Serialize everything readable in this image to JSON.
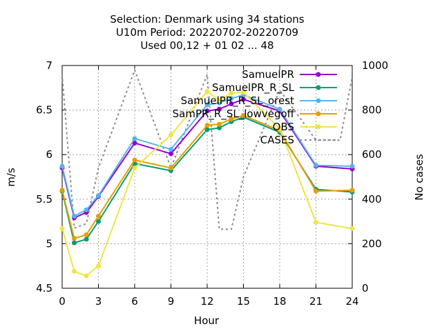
{
  "chart_data": {
    "type": "line",
    "title_lines": [
      "Selection: Denmark using    34 stations",
      "U10m   Period: 20220702-20220709",
      "Used  00,12  + 01 02 ... 48"
    ],
    "xlabel": "Hour",
    "ylabel": "m/s",
    "y2label": "No cases",
    "xlim": [
      0,
      24
    ],
    "ylim": [
      4.5,
      7
    ],
    "y2lim": [
      0,
      1000
    ],
    "x_ticks": [
      0,
      3,
      6,
      9,
      12,
      15,
      18,
      21,
      24
    ],
    "y_ticks": [
      4.5,
      5,
      5.5,
      6,
      6.5,
      7
    ],
    "y_tick_labels": [
      "4.5",
      "5",
      "5.5",
      "6",
      "6.5",
      "7"
    ],
    "y2_ticks": [
      0,
      200,
      400,
      600,
      800,
      1000
    ],
    "grid": true,
    "legend_position": "top-right",
    "x": [
      0,
      1,
      2,
      3,
      6,
      9,
      12,
      13,
      14,
      15,
      18,
      21,
      24
    ],
    "series": [
      {
        "name": "SamuelPR",
        "color": "#9400d3",
        "marker": "circle",
        "values": [
          5.85,
          5.29,
          5.35,
          5.53,
          6.13,
          6.01,
          6.49,
          6.51,
          6.57,
          6.62,
          6.49,
          5.87,
          5.84
        ]
      },
      {
        "name": "SamuelPR_R_SL",
        "color": "#009e73",
        "marker": "circle",
        "values": [
          5.59,
          5.01,
          5.05,
          5.25,
          5.9,
          5.82,
          6.28,
          6.3,
          6.37,
          6.42,
          6.25,
          5.61,
          5.58
        ]
      },
      {
        "name": "SamuelPR_R_SL_orest",
        "color": "#56b4e9",
        "marker": "circle",
        "values": [
          5.87,
          5.31,
          5.38,
          5.54,
          6.18,
          6.06,
          6.56,
          6.58,
          6.63,
          6.67,
          6.51,
          5.88,
          5.87
        ]
      },
      {
        "name": "SamPR_R_SL_lowvegoff",
        "color": "#e69f00",
        "marker": "circle",
        "values": [
          5.6,
          5.06,
          5.1,
          5.31,
          5.94,
          5.85,
          6.33,
          6.34,
          6.4,
          6.44,
          6.27,
          5.59,
          5.6
        ]
      },
      {
        "name": "OBS",
        "color": "#f0e442",
        "marker": "circle",
        "values": [
          5.17,
          4.69,
          4.64,
          4.75,
          5.85,
          6.22,
          6.71,
          6.61,
          6.69,
          6.7,
          6.29,
          5.24,
          5.17
        ]
      }
    ],
    "cases": {
      "name": "CASES",
      "color": "#888888",
      "axis": "y2",
      "x": [
        0,
        1,
        2,
        3,
        6,
        9,
        12,
        13,
        14,
        15,
        18,
        21,
        22,
        23,
        24
      ],
      "values": [
        960,
        270,
        290,
        540,
        980,
        540,
        960,
        265,
        265,
        500,
        890,
        665,
        665,
        665,
        950
      ]
    },
    "legend_labels": [
      "SamuelPR",
      "SamuelPR_R_SL",
      "SamuelPR_R_SL_orest",
      "SamPR_R_SL_lowvegoff",
      "OBS",
      "CASES"
    ]
  }
}
